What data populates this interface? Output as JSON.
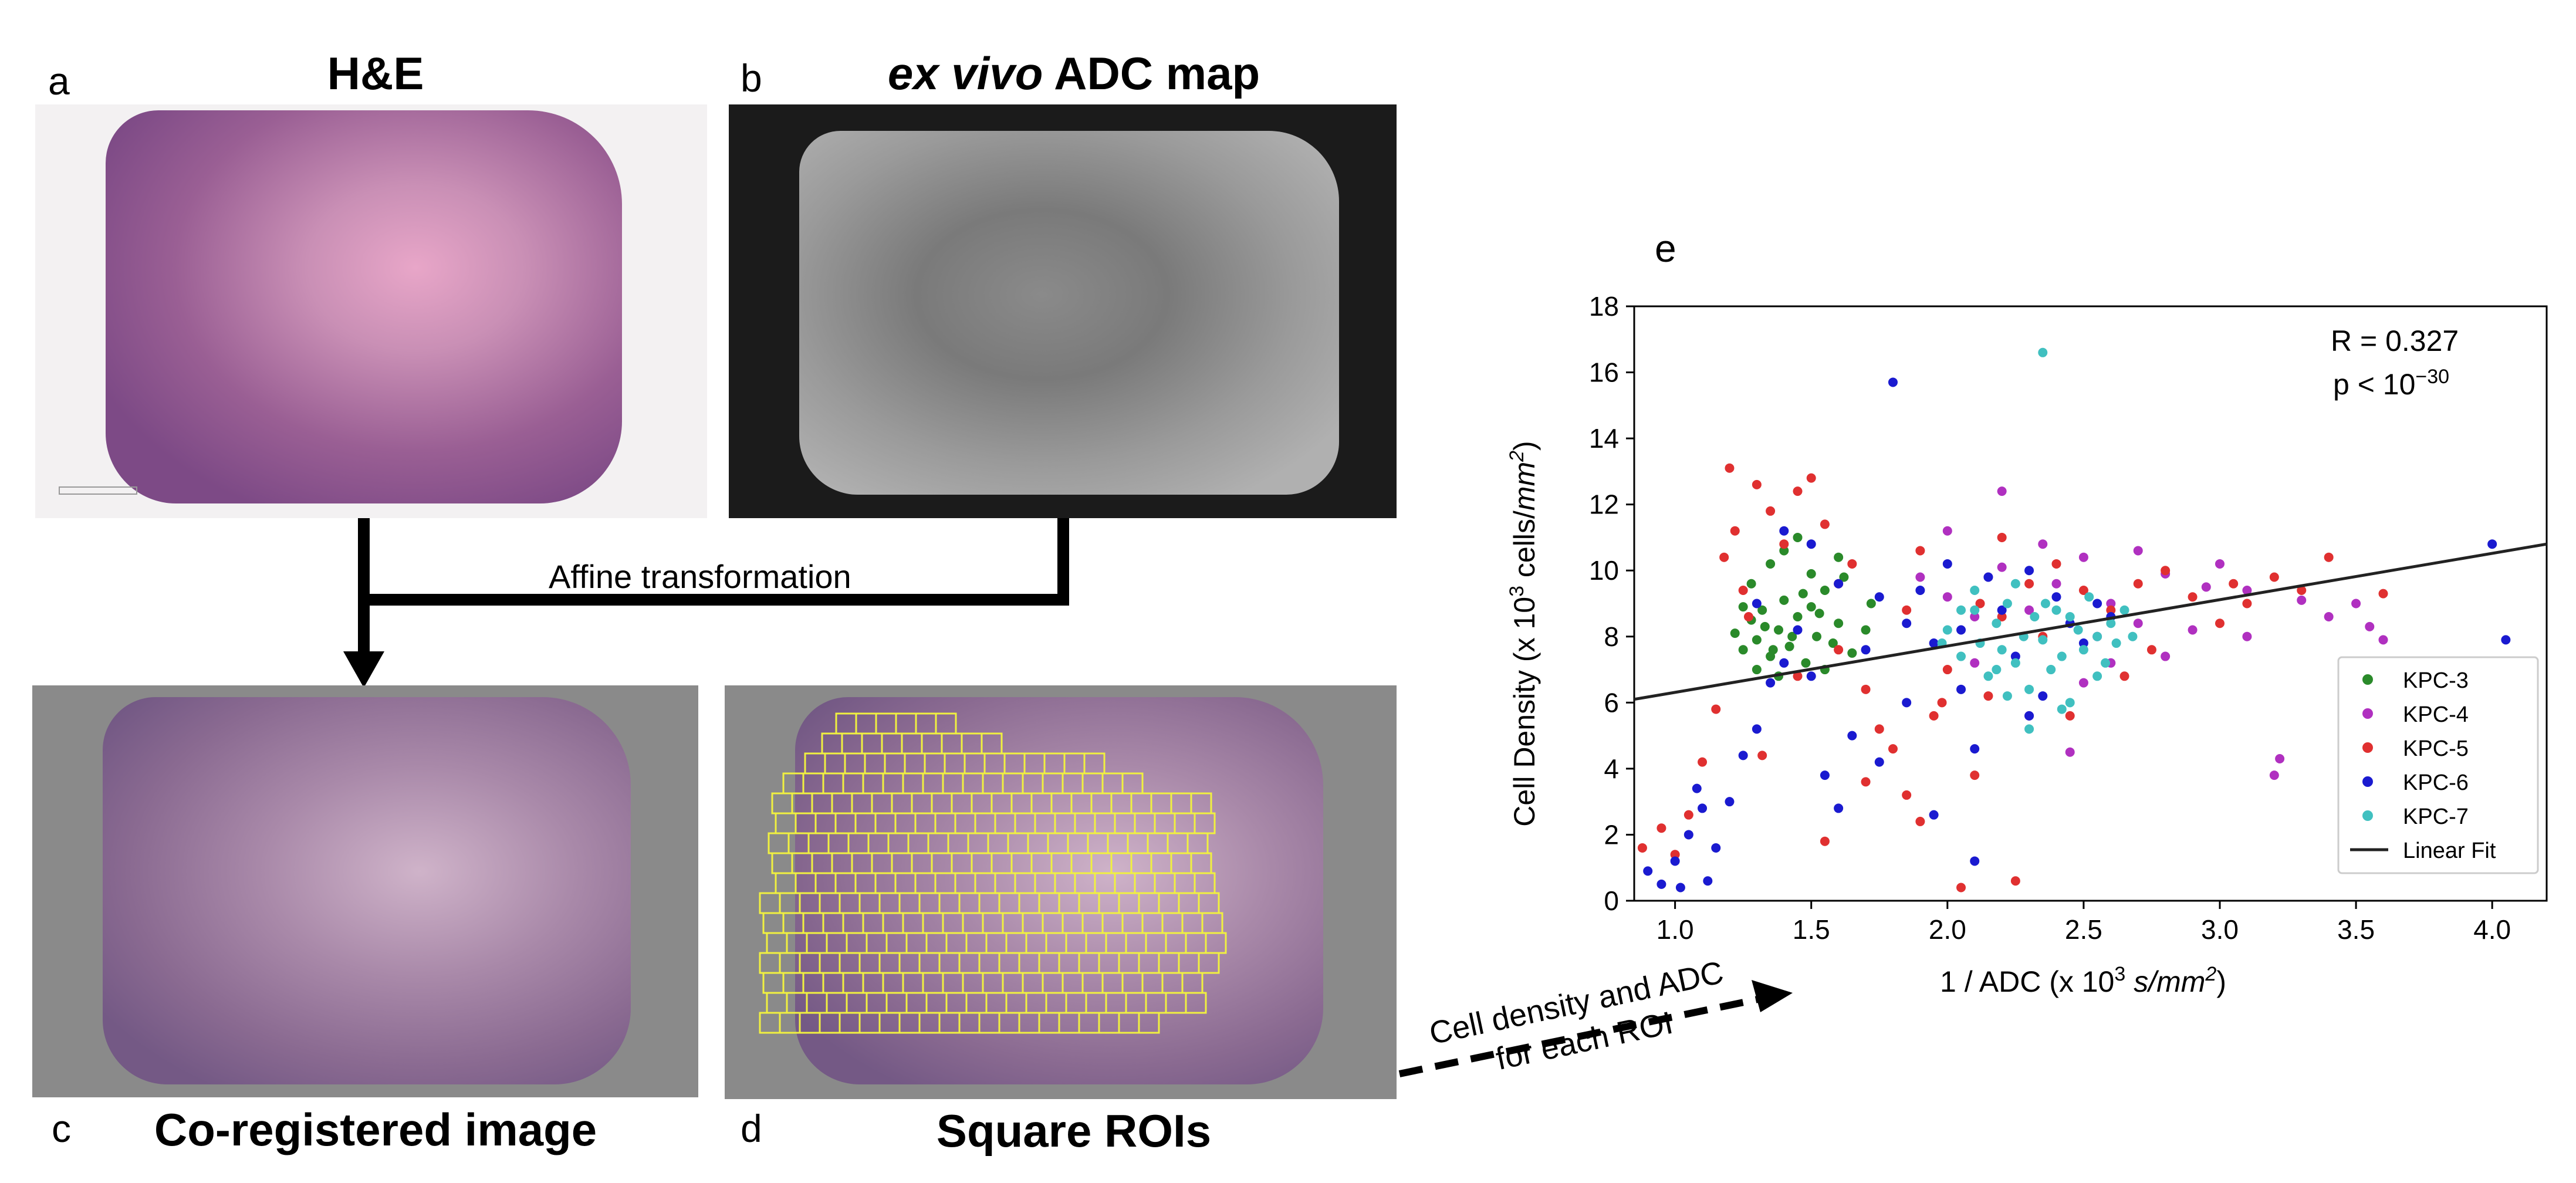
{
  "panels": {
    "a": {
      "letter": "a",
      "title": "H&E"
    },
    "b": {
      "letter": "b",
      "title_italic": "ex vivo",
      "title_rest": " ADC map"
    },
    "c": {
      "letter": "c",
      "title": "Co-registered image"
    },
    "d": {
      "letter": "d",
      "title": "Square ROIs"
    },
    "e": {
      "letter": "e"
    }
  },
  "arrows": {
    "affine_label": "Affine transformation",
    "roi_label_line1": "Cell density and ADC",
    "roi_label_line2": "for each ROI"
  },
  "colors": {
    "KPC-3": "#2a8a2a",
    "KPC-4": "#b030c0",
    "KPC-5": "#e03030",
    "KPC-6": "#1a1ad0",
    "KPC-7": "#40c0c0",
    "fit": "#222222",
    "roi_grid": "#f0f040"
  },
  "chart_data": {
    "type": "scatter",
    "xlabel_pre": "1 / ADC (x 10",
    "xlabel_sup": "3",
    "xlabel_unit": "s/mm",
    "xlabel_unit_sup": "2",
    "xlabel_end": ")",
    "ylabel_pre": "Cell Density (x 10",
    "ylabel_sup": "3",
    "ylabel_mid": " cells/",
    "ylabel_unit": "mm",
    "ylabel_unit_sup": "2",
    "ylabel_end": ")",
    "xlim": [
      0.85,
      4.2
    ],
    "ylim": [
      0,
      18
    ],
    "xticks": [
      "1.0",
      "1.5",
      "2.0",
      "2.5",
      "3.0",
      "3.5",
      "4.0"
    ],
    "yticks": [
      "0",
      "2",
      "4",
      "6",
      "8",
      "10",
      "12",
      "14",
      "16",
      "18"
    ],
    "annotation_r": "R = 0.327",
    "annotation_p_pre": "p < 10",
    "annotation_p_sup": "−30",
    "legend_position": "bottom-right",
    "fit": {
      "name": "Linear Fit",
      "x": [
        0.85,
        4.2
      ],
      "y": [
        6.1,
        10.8
      ]
    },
    "series": [
      {
        "name": "KPC-3",
        "points": [
          [
            1.22,
            8.1
          ],
          [
            1.25,
            7.6
          ],
          [
            1.28,
            8.5
          ],
          [
            1.3,
            7.9
          ],
          [
            1.32,
            8.8
          ],
          [
            1.35,
            7.4
          ],
          [
            1.38,
            8.2
          ],
          [
            1.4,
            9.1
          ],
          [
            1.42,
            7.7
          ],
          [
            1.45,
            8.6
          ],
          [
            1.48,
            7.2
          ],
          [
            1.5,
            8.9
          ],
          [
            1.52,
            8.0
          ],
          [
            1.55,
            9.4
          ],
          [
            1.58,
            7.8
          ],
          [
            1.6,
            8.4
          ],
          [
            1.62,
            9.8
          ],
          [
            1.65,
            7.5
          ],
          [
            1.35,
            10.2
          ],
          [
            1.4,
            10.6
          ],
          [
            1.28,
            9.6
          ],
          [
            1.45,
            11.0
          ],
          [
            1.5,
            9.9
          ],
          [
            1.3,
            7.0
          ],
          [
            1.38,
            6.8
          ],
          [
            1.55,
            7.0
          ],
          [
            1.7,
            8.2
          ],
          [
            1.72,
            9.0
          ],
          [
            1.25,
            8.9
          ],
          [
            1.6,
            10.4
          ],
          [
            1.33,
            8.3
          ],
          [
            1.43,
            8.0
          ],
          [
            1.47,
            9.3
          ],
          [
            1.36,
            7.6
          ],
          [
            1.53,
            8.7
          ]
        ]
      },
      {
        "name": "KPC-4",
        "points": [
          [
            2.0,
            9.2
          ],
          [
            2.1,
            8.6
          ],
          [
            2.2,
            10.1
          ],
          [
            2.3,
            8.8
          ],
          [
            2.4,
            9.6
          ],
          [
            2.5,
            10.4
          ],
          [
            2.6,
            9.0
          ],
          [
            2.7,
            8.4
          ],
          [
            2.8,
            9.9
          ],
          [
            2.9,
            8.2
          ],
          [
            3.0,
            10.2
          ],
          [
            3.1,
            9.4
          ],
          [
            3.2,
            3.8
          ],
          [
            3.22,
            4.3
          ],
          [
            3.3,
            9.1
          ],
          [
            3.4,
            8.6
          ],
          [
            3.5,
            9.0
          ],
          [
            3.55,
            8.3
          ],
          [
            3.6,
            7.9
          ],
          [
            2.2,
            12.4
          ],
          [
            2.0,
            11.2
          ],
          [
            2.5,
            6.6
          ],
          [
            2.6,
            7.2
          ],
          [
            2.45,
            4.5
          ],
          [
            2.3,
            5.6
          ],
          [
            2.1,
            7.2
          ],
          [
            2.8,
            7.4
          ],
          [
            3.1,
            8.0
          ],
          [
            2.35,
            10.8
          ],
          [
            1.9,
            9.8
          ],
          [
            2.7,
            10.6
          ],
          [
            2.95,
            9.5
          ],
          [
            2.15,
            9.8
          ],
          [
            2.55,
            8.0
          ]
        ]
      },
      {
        "name": "KPC-5",
        "points": [
          [
            0.88,
            1.6
          ],
          [
            0.95,
            2.2
          ],
          [
            1.0,
            1.4
          ],
          [
            1.05,
            2.6
          ],
          [
            1.1,
            4.2
          ],
          [
            1.15,
            5.8
          ],
          [
            1.18,
            10.4
          ],
          [
            1.2,
            13.1
          ],
          [
            1.22,
            11.2
          ],
          [
            1.25,
            9.4
          ],
          [
            1.3,
            12.6
          ],
          [
            1.35,
            11.8
          ],
          [
            1.4,
            10.8
          ],
          [
            1.45,
            12.4
          ],
          [
            1.5,
            12.8
          ],
          [
            1.55,
            11.4
          ],
          [
            1.6,
            9.6
          ],
          [
            1.65,
            10.2
          ],
          [
            1.7,
            6.4
          ],
          [
            1.75,
            5.2
          ],
          [
            1.8,
            4.6
          ],
          [
            1.85,
            3.2
          ],
          [
            1.9,
            2.4
          ],
          [
            1.95,
            5.6
          ],
          [
            2.0,
            7.0
          ],
          [
            2.05,
            0.4
          ],
          [
            2.1,
            3.8
          ],
          [
            2.15,
            6.2
          ],
          [
            2.2,
            8.6
          ],
          [
            2.25,
            0.6
          ],
          [
            2.3,
            9.6
          ],
          [
            2.35,
            8.0
          ],
          [
            2.4,
            10.2
          ],
          [
            2.5,
            9.4
          ],
          [
            2.6,
            8.8
          ],
          [
            2.7,
            9.6
          ],
          [
            2.8,
            10.0
          ],
          [
            2.9,
            9.2
          ],
          [
            3.0,
            8.4
          ],
          [
            3.1,
            9.0
          ],
          [
            3.2,
            9.8
          ],
          [
            3.3,
            9.4
          ],
          [
            3.4,
            10.4
          ],
          [
            3.6,
            9.3
          ],
          [
            2.2,
            11.0
          ],
          [
            1.9,
            10.6
          ],
          [
            1.6,
            7.6
          ],
          [
            1.45,
            6.8
          ],
          [
            1.32,
            4.4
          ],
          [
            1.27,
            8.6
          ],
          [
            2.65,
            6.8
          ],
          [
            2.45,
            5.6
          ],
          [
            1.7,
            3.6
          ],
          [
            1.55,
            1.8
          ],
          [
            1.85,
            8.8
          ],
          [
            2.75,
            7.6
          ],
          [
            3.05,
            9.6
          ],
          [
            1.98,
            6.0
          ],
          [
            2.12,
            9.0
          ]
        ]
      },
      {
        "name": "KPC-6",
        "points": [
          [
            0.9,
            0.9
          ],
          [
            0.95,
            0.5
          ],
          [
            1.0,
            1.2
          ],
          [
            1.02,
            0.4
          ],
          [
            1.05,
            2.0
          ],
          [
            1.08,
            3.4
          ],
          [
            1.1,
            2.8
          ],
          [
            1.15,
            1.6
          ],
          [
            1.2,
            3.0
          ],
          [
            1.25,
            4.4
          ],
          [
            1.3,
            5.2
          ],
          [
            1.35,
            6.6
          ],
          [
            1.4,
            7.2
          ],
          [
            1.45,
            8.2
          ],
          [
            1.5,
            6.8
          ],
          [
            1.55,
            3.8
          ],
          [
            1.6,
            2.8
          ],
          [
            1.65,
            5.0
          ],
          [
            1.7,
            7.6
          ],
          [
            1.75,
            9.2
          ],
          [
            1.8,
            15.7
          ],
          [
            1.85,
            8.4
          ],
          [
            1.9,
            9.4
          ],
          [
            1.95,
            7.8
          ],
          [
            2.0,
            10.2
          ],
          [
            2.05,
            6.4
          ],
          [
            2.1,
            4.6
          ],
          [
            2.15,
            9.8
          ],
          [
            2.2,
            8.8
          ],
          [
            2.25,
            7.4
          ],
          [
            2.3,
            10.0
          ],
          [
            2.35,
            6.2
          ],
          [
            2.4,
            9.2
          ],
          [
            2.45,
            8.4
          ],
          [
            2.5,
            7.8
          ],
          [
            2.55,
            9.0
          ],
          [
            2.6,
            8.6
          ],
          [
            1.5,
            10.8
          ],
          [
            1.4,
            11.2
          ],
          [
            1.95,
            2.6
          ],
          [
            2.1,
            1.2
          ],
          [
            1.75,
            4.2
          ],
          [
            4.0,
            10.8
          ],
          [
            4.05,
            7.9
          ],
          [
            1.12,
            0.6
          ],
          [
            1.6,
            9.6
          ],
          [
            1.85,
            6.0
          ],
          [
            2.05,
            8.2
          ],
          [
            2.3,
            5.6
          ],
          [
            1.3,
            9.0
          ]
        ]
      },
      {
        "name": "KPC-7",
        "points": [
          [
            2.0,
            8.2
          ],
          [
            2.05,
            7.4
          ],
          [
            2.1,
            8.8
          ],
          [
            2.12,
            7.8
          ],
          [
            2.15,
            6.8
          ],
          [
            2.18,
            8.4
          ],
          [
            2.2,
            7.6
          ],
          [
            2.22,
            9.0
          ],
          [
            2.25,
            7.2
          ],
          [
            2.28,
            8.0
          ],
          [
            2.3,
            6.4
          ],
          [
            2.32,
            8.6
          ],
          [
            2.35,
            7.9
          ],
          [
            2.38,
            7.0
          ],
          [
            2.4,
            8.8
          ],
          [
            2.42,
            7.4
          ],
          [
            2.45,
            6.0
          ],
          [
            2.48,
            8.2
          ],
          [
            2.5,
            7.6
          ],
          [
            2.52,
            9.2
          ],
          [
            2.55,
            8.0
          ],
          [
            2.58,
            7.2
          ],
          [
            2.6,
            8.4
          ],
          [
            2.62,
            7.8
          ],
          [
            2.65,
            8.8
          ],
          [
            2.3,
            5.2
          ],
          [
            2.35,
            16.6
          ],
          [
            2.1,
            9.4
          ],
          [
            2.25,
            9.6
          ],
          [
            2.45,
            8.6
          ],
          [
            2.55,
            6.8
          ],
          [
            2.18,
            7.0
          ],
          [
            2.05,
            8.8
          ],
          [
            1.98,
            7.8
          ],
          [
            2.42,
            5.8
          ],
          [
            2.68,
            8.0
          ],
          [
            2.22,
            6.2
          ],
          [
            2.36,
            9.0
          ]
        ]
      }
    ]
  }
}
